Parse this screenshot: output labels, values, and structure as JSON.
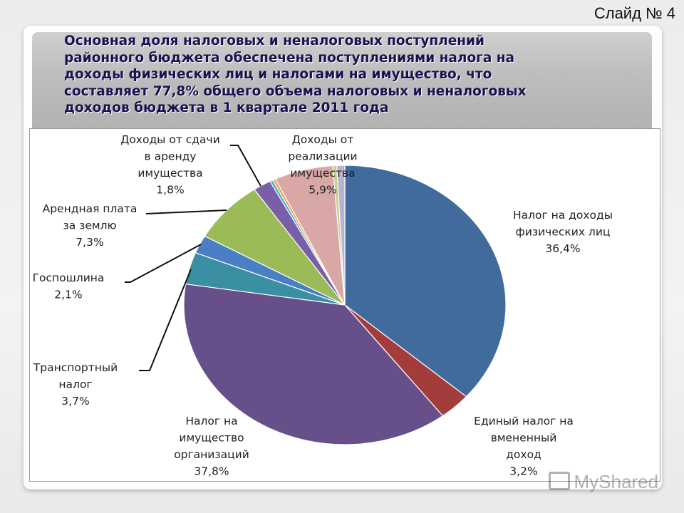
{
  "slide": {
    "number_label": "Слайд № 4"
  },
  "title_lines": [
    "Основная доля налоговых и неналоговых поступлений",
    "районного бюджета обеспечена поступлениями налога на",
    "доходы физических лиц и налогами на имущество, что",
    "составляет 77,8% общего объема налоговых и неналоговых",
    "доходов бюджета в 1 квартале 2011 года"
  ],
  "watermark": {
    "text": "MyShared"
  },
  "chart_data": {
    "type": "pie",
    "title": "",
    "start_angle_deg": 0,
    "direction": "clockwise",
    "legend": "none",
    "slices": [
      {
        "name": "Налог на доходы физических лиц",
        "value": 36.4,
        "label": "36,4%",
        "color": "#416b9c",
        "label_lines": [
          "Налог на доходы",
          "физических лиц",
          "36,4%"
        ]
      },
      {
        "name": "Единый налог на вмененный доход",
        "value": 3.2,
        "label": "3,2%",
        "color": "#a33d3b",
        "label_lines": [
          "Единый налог на",
          "вмененный",
          "доход",
          "3,2%"
        ]
      },
      {
        "name": "Налог на имущество организаций",
        "value": 37.8,
        "label": "37,8%",
        "color": "#67508a",
        "label_lines": [
          "Налог на",
          "имущество",
          "организаций",
          "37,8%"
        ]
      },
      {
        "name": "Транспортный налог",
        "value": 3.7,
        "label": "3,7%",
        "color": "#3a8fa3",
        "label_lines": [
          "Транспортный",
          "налог",
          "3,7%"
        ]
      },
      {
        "name": "Госпошлина",
        "value": 2.1,
        "label": "2,1%",
        "color": "#4a7fc6",
        "label_lines": [
          "Госпошлина",
          "2,1%"
        ]
      },
      {
        "name": "Арендная плата за землю",
        "value": 7.3,
        "label": "7,3%",
        "color": "#9bbb59",
        "label_lines": [
          "Арендная плата",
          "за землю",
          "7,3%"
        ]
      },
      {
        "name": "Доходы от сдачи в аренду имущества",
        "value": 1.8,
        "label": "1,8%",
        "color": "#7a5fa8",
        "label_lines": [
          "Доходы от сдачи",
          "в аренду",
          "имущества",
          "1,8%"
        ]
      },
      {
        "name": "",
        "value": 0.3,
        "label": "",
        "color": "#4aaccf",
        "label_lines": []
      },
      {
        "name": "",
        "value": 0.3,
        "label": "",
        "color": "#f3a04b",
        "label_lines": []
      },
      {
        "name": "Доходы от реализации имущества",
        "value": 5.9,
        "label": "5,9%",
        "color": "#d9a7a6",
        "label_lines": [
          "Доходы от",
          "реализации",
          "имущества",
          "5,9%"
        ]
      },
      {
        "name": "",
        "value": 0.4,
        "label": "",
        "color": "#c3d08f",
        "label_lines": []
      },
      {
        "name": "",
        "value": 0.8,
        "label": "",
        "color": "#b8b3d1",
        "label_lines": []
      }
    ]
  }
}
